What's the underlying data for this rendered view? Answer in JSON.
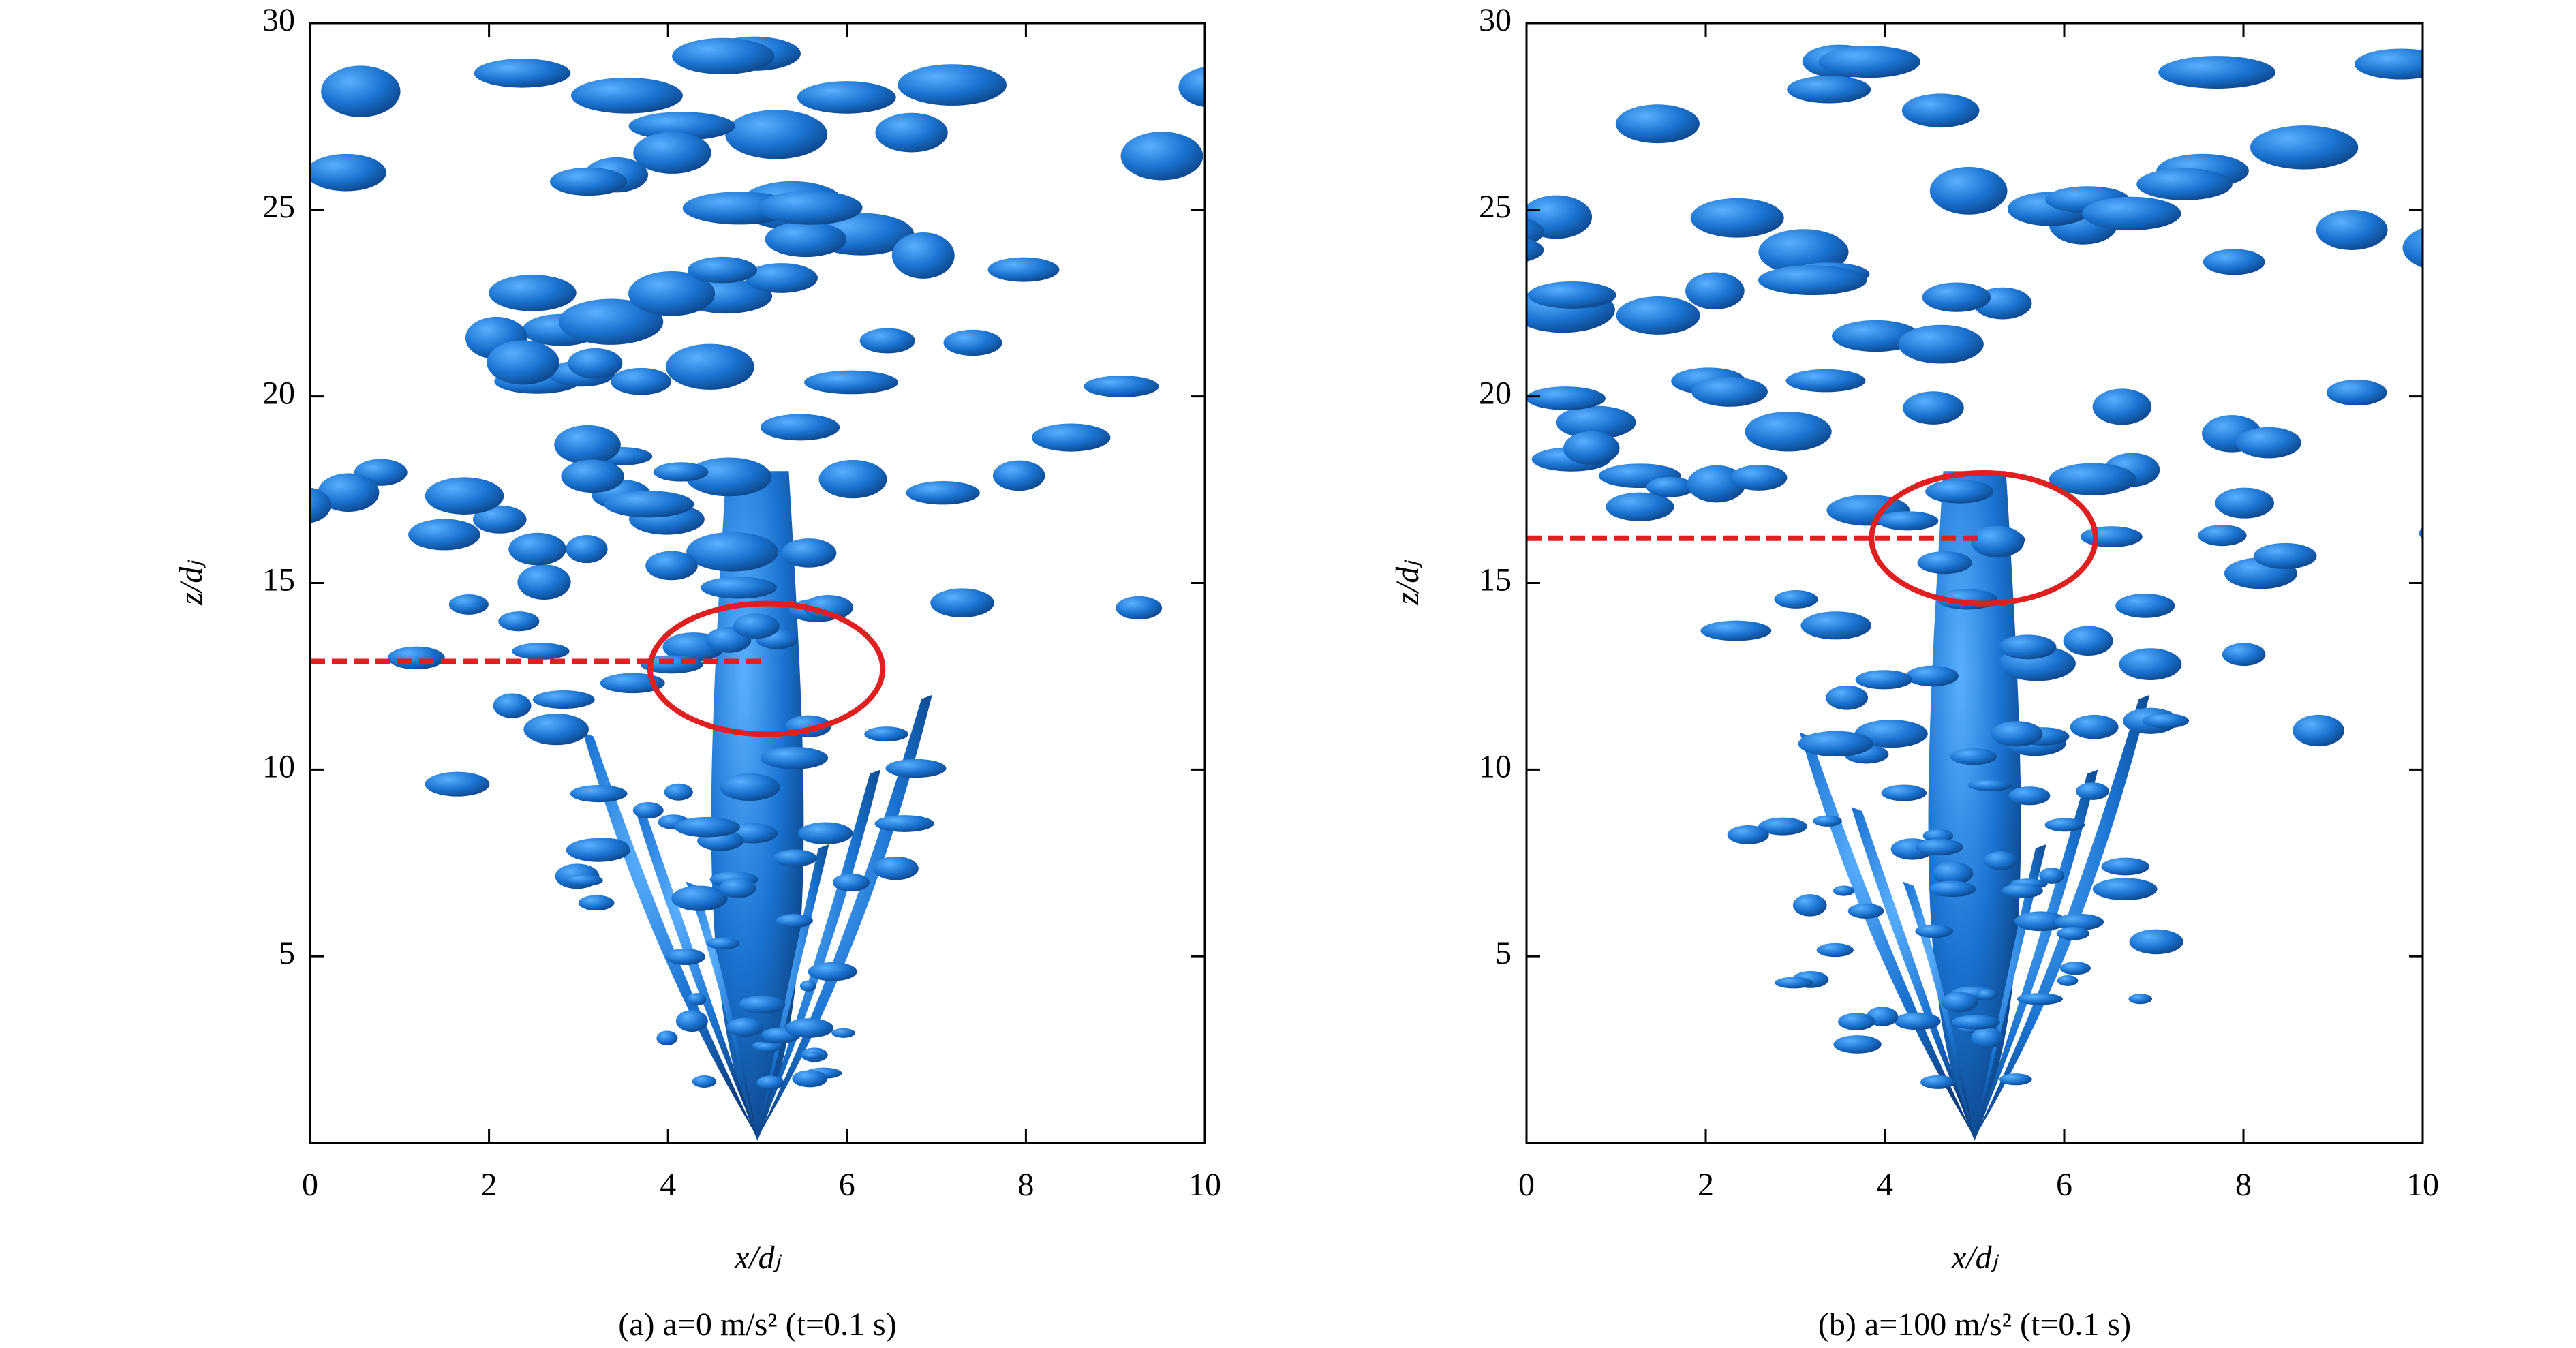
{
  "chart_data": [
    {
      "type": "isosurface",
      "caption": "(a) a=0 m/s² (t=0.1 s)",
      "xlabel": "x/dⱼ",
      "ylabel": "z/dⱼ",
      "xlim": [
        0,
        10
      ],
      "ylim": [
        0,
        30
      ],
      "xticks": [
        0,
        2,
        4,
        6,
        8,
        10
      ],
      "yticks": [
        5,
        10,
        15,
        20,
        25,
        30
      ],
      "color": "#1a73d0",
      "annotation_color": "#e02020",
      "reference_line": {
        "y": 12.9,
        "x_end": 5.1
      },
      "ellipse": {
        "cx": 5.1,
        "cy": 12.7,
        "rx": 1.3,
        "ry": 1.75
      }
    },
    {
      "type": "isosurface",
      "caption": "(b) a=100 m/s² (t=0.1 s)",
      "xlabel": "x/dⱼ",
      "ylabel": "z/dⱼ",
      "xlim": [
        0,
        10
      ],
      "ylim": [
        0,
        30
      ],
      "xticks": [
        0,
        2,
        4,
        6,
        8,
        10
      ],
      "yticks": [
        5,
        10,
        15,
        20,
        25,
        30
      ],
      "color": "#1a73d0",
      "annotation_color": "#e02020",
      "reference_line": {
        "y": 16.2,
        "x_end": 5.1
      },
      "ellipse": {
        "cx": 5.1,
        "cy": 16.2,
        "rx": 1.25,
        "ry": 1.75
      }
    }
  ]
}
